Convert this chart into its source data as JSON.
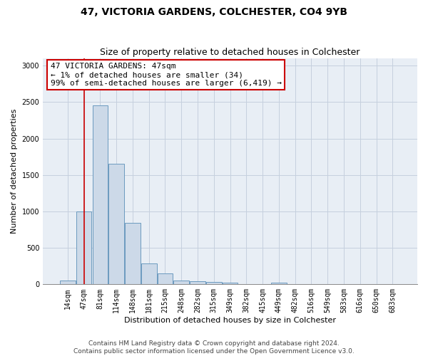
{
  "title": "47, VICTORIA GARDENS, COLCHESTER, CO4 9YB",
  "subtitle": "Size of property relative to detached houses in Colchester",
  "xlabel": "Distribution of detached houses by size in Colchester",
  "ylabel": "Number of detached properties",
  "categories": [
    "14sqm",
    "47sqm",
    "81sqm",
    "114sqm",
    "148sqm",
    "181sqm",
    "215sqm",
    "248sqm",
    "282sqm",
    "315sqm",
    "349sqm",
    "382sqm",
    "415sqm",
    "449sqm",
    "482sqm",
    "516sqm",
    "549sqm",
    "583sqm",
    "616sqm",
    "650sqm",
    "683sqm"
  ],
  "values": [
    50,
    1000,
    2460,
    1650,
    840,
    290,
    145,
    55,
    45,
    35,
    20,
    0,
    0,
    25,
    0,
    0,
    0,
    0,
    0,
    0,
    0
  ],
  "bar_color": "#ccd9e8",
  "bar_edgecolor": "#6b9abf",
  "annotation_box_text": "47 VICTORIA GARDENS: 47sqm\n← 1% of detached houses are smaller (34)\n99% of semi-detached houses are larger (6,419) →",
  "annotation_box_edgecolor": "#cc0000",
  "annotation_vline_x": 1,
  "ylim": [
    0,
    3100
  ],
  "yticks": [
    0,
    500,
    1000,
    1500,
    2000,
    2500,
    3000
  ],
  "footer_line1": "Contains HM Land Registry data © Crown copyright and database right 2024.",
  "footer_line2": "Contains public sector information licensed under the Open Government Licence v3.0.",
  "bg_color": "#ffffff",
  "plot_bg_color": "#e8eef5",
  "grid_color": "#c5d0de",
  "title_fontsize": 10,
  "subtitle_fontsize": 9,
  "axis_label_fontsize": 8,
  "tick_fontsize": 7,
  "footer_fontsize": 6.5
}
